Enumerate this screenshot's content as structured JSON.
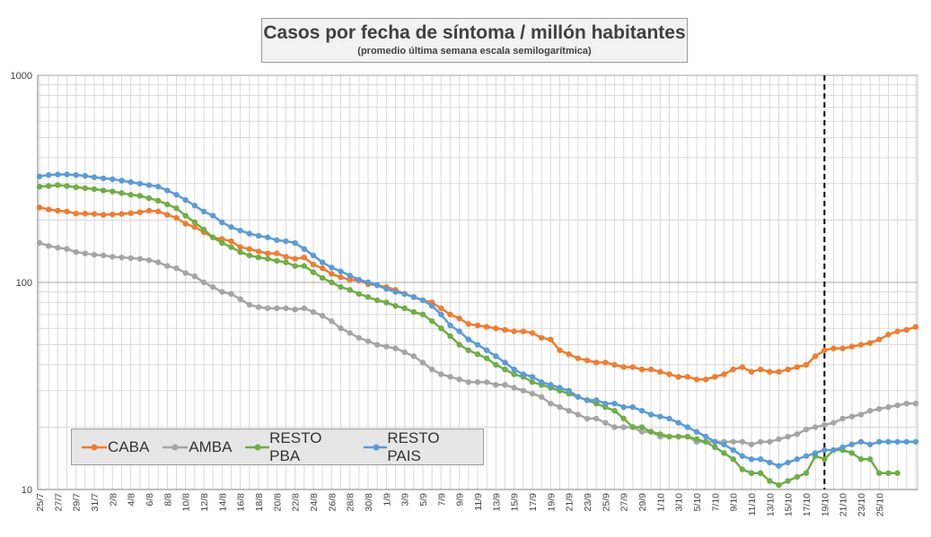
{
  "chart_data": {
    "type": "line",
    "title": "Casos por fecha de síntoma / millón habitantes",
    "subtitle": "(promedio última semana escala semilogarítmica)",
    "xlabel": "",
    "ylabel": "",
    "y_scale": "log",
    "ylim": [
      10,
      1000
    ],
    "y_ticks": [
      "10",
      "100",
      "1000"
    ],
    "grid": true,
    "legend_position": "bottom-left",
    "reference_line": {
      "x": "19/10",
      "style": "dashed",
      "color": "#000000"
    },
    "x_tick_labels": [
      "25/7",
      "27/7",
      "29/7",
      "31/7",
      "2/8",
      "4/8",
      "6/8",
      "8/8",
      "10/8",
      "12/8",
      "14/8",
      "16/8",
      "18/8",
      "20/8",
      "22/8",
      "24/8",
      "26/8",
      "28/8",
      "30/8",
      "1/9",
      "3/9",
      "5/9",
      "7/9",
      "9/9",
      "11/9",
      "13/9",
      "15/9",
      "17/9",
      "19/9",
      "21/9",
      "23/9",
      "25/9",
      "27/9",
      "29/9",
      "1/10",
      "3/10",
      "5/10",
      "7/10",
      "9/10",
      "11/10",
      "13/10",
      "15/10",
      "17/10",
      "19/10",
      "21/10",
      "23/10",
      "25/10"
    ],
    "series": [
      {
        "name": "CABA",
        "color": "#ed7d31",
        "values": [
          230,
          225,
          222,
          220,
          215,
          215,
          214,
          212,
          213,
          214,
          216,
          218,
          222,
          220,
          212,
          205,
          192,
          185,
          175,
          165,
          162,
          158,
          148,
          145,
          141,
          138,
          138,
          133,
          130,
          132,
          122,
          117,
          110,
          106,
          103,
          102,
          98,
          97,
          95,
          92,
          88,
          85,
          82,
          80,
          75,
          70,
          67,
          63,
          62,
          61,
          60,
          59,
          58,
          58,
          57,
          54,
          53,
          47,
          45,
          43,
          42,
          41,
          41,
          40,
          39,
          39,
          38,
          38,
          37,
          36,
          35,
          35,
          34,
          34,
          35,
          36,
          38,
          39,
          37,
          38,
          37,
          37,
          38,
          39,
          40,
          44,
          47,
          48,
          48,
          49,
          50,
          51,
          53,
          56,
          58,
          59,
          61
        ]
      },
      {
        "name": "AMBA",
        "color": "#a5a5a5",
        "values": [
          155,
          150,
          147,
          145,
          140,
          138,
          136,
          135,
          133,
          132,
          131,
          130,
          128,
          125,
          120,
          117,
          111,
          107,
          100,
          95,
          90,
          88,
          83,
          78,
          76,
          75,
          75,
          75,
          74,
          75,
          72,
          69,
          65,
          60,
          57,
          54,
          52,
          50,
          49,
          48,
          46,
          44,
          41,
          38,
          36,
          35,
          34,
          33,
          33,
          33,
          32,
          32,
          31,
          30,
          29,
          28,
          26,
          25,
          24,
          23,
          22,
          22,
          21,
          20,
          20,
          20,
          19,
          19,
          18,
          18,
          18,
          18,
          17,
          17,
          17,
          17,
          17,
          17,
          16.5,
          17,
          17,
          17.5,
          18,
          18.5,
          19.5,
          20,
          20.5,
          21,
          22,
          22.5,
          23,
          24,
          24.5,
          25,
          25.5,
          26,
          26
        ]
      },
      {
        "name": "RESTO PBA",
        "color": "#70ad47",
        "values": [
          290,
          292,
          295,
          292,
          288,
          285,
          282,
          278,
          275,
          270,
          265,
          262,
          255,
          248,
          238,
          228,
          210,
          195,
          180,
          165,
          155,
          148,
          140,
          135,
          132,
          130,
          127,
          125,
          120,
          120,
          112,
          105,
          100,
          95,
          92,
          88,
          85,
          82,
          80,
          77,
          75,
          72,
          70,
          65,
          60,
          55,
          50,
          47,
          45,
          43,
          40,
          38,
          36,
          35,
          33,
          32,
          31,
          30,
          29,
          28,
          27,
          26,
          25,
          24,
          22,
          20,
          20,
          19,
          18.5,
          18,
          18,
          18,
          17.5,
          17,
          16,
          15,
          14,
          12.5,
          12,
          12,
          11,
          10.5,
          11,
          11.5,
          12,
          14.5,
          14,
          15.5,
          15.5,
          15,
          14,
          14,
          12,
          12,
          12
        ]
      },
      {
        "name": "RESTO PAIS",
        "color": "#5b9bd5",
        "values": [
          325,
          330,
          332,
          332,
          330,
          327,
          322,
          318,
          315,
          310,
          305,
          300,
          295,
          290,
          278,
          265,
          250,
          235,
          220,
          210,
          195,
          185,
          178,
          172,
          168,
          165,
          160,
          158,
          155,
          145,
          135,
          125,
          118,
          113,
          108,
          103,
          100,
          97,
          93,
          90,
          88,
          85,
          82,
          77,
          70,
          62,
          58,
          53,
          50,
          47,
          44,
          41,
          38,
          36,
          35,
          33,
          32,
          31,
          30,
          28,
          27,
          27,
          26,
          26,
          25,
          25,
          24,
          23,
          22.5,
          22,
          21,
          20,
          19,
          18,
          17,
          16.5,
          15.5,
          14.5,
          14,
          14,
          13.5,
          13,
          13.5,
          14,
          14.5,
          15,
          15.5,
          15.5,
          16,
          16.5,
          17,
          16.5,
          17,
          17,
          17,
          17,
          17
        ]
      }
    ]
  }
}
